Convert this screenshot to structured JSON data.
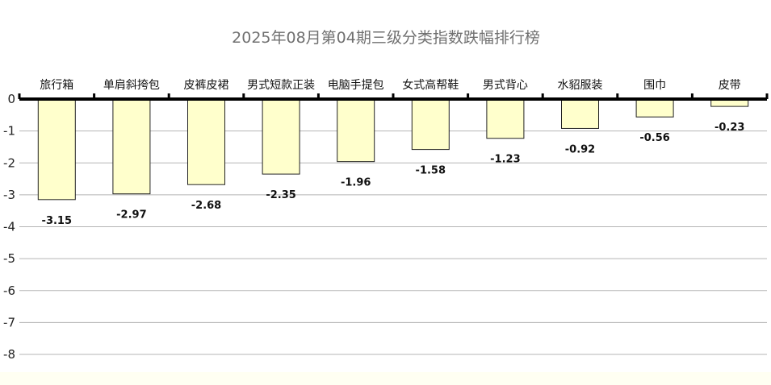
{
  "chart_data": {
    "type": "bar",
    "title": "2025年08月第04期三级分类指数跌幅排行榜",
    "categories": [
      "旅行箱",
      "单肩斜挎包",
      "皮裤皮裙",
      "男式短款正装",
      "电脑手提包",
      "女式高帮鞋",
      "男式背心",
      "水貂服装",
      "围巾",
      "皮带"
    ],
    "values": [
      -3.15,
      -2.97,
      -2.68,
      -2.35,
      -1.96,
      -1.58,
      -1.23,
      -0.92,
      -0.56,
      -0.23
    ],
    "value_labels": [
      "-3.15",
      "-2.97",
      "-2.68",
      "-2.35",
      "-1.96",
      "-1.58",
      "-1.23",
      "-0.92",
      "-0.56",
      "-0.23"
    ],
    "yticks": [
      "0",
      "-1",
      "-2",
      "-3",
      "-4",
      "-5",
      "-6",
      "-7",
      "-8"
    ],
    "ylim": [
      -8,
      0
    ],
    "xlabel": "",
    "ylabel": "",
    "grid": true,
    "bar_color": "#ffffcc",
    "category_axis_position": "top"
  }
}
